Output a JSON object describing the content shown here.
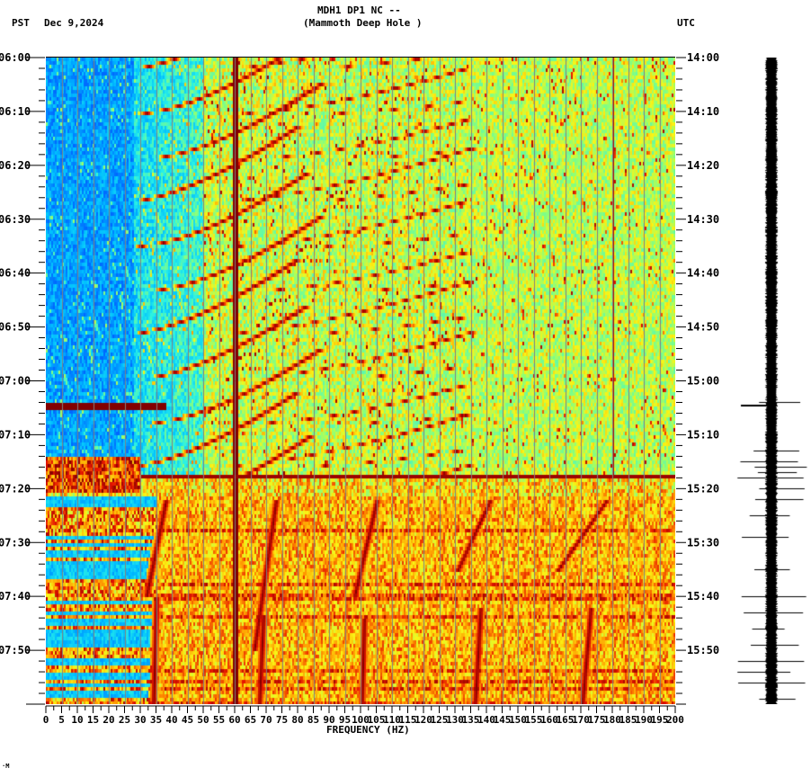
{
  "header": {
    "station": "MDH1 DP1 NC --",
    "location": "(Mammoth Deep Hole )",
    "left_zone": "PST",
    "date": "Dec 9,2024",
    "right_zone": "UTC",
    "corner_mark": "·M"
  },
  "axes": {
    "xlabel": "FREQUENCY (HZ)",
    "x_ticks": [
      "0",
      "5",
      "10",
      "15",
      "20",
      "25",
      "30",
      "35",
      "40",
      "45",
      "50",
      "55",
      "60",
      "65",
      "70",
      "75",
      "80",
      "85",
      "90",
      "95",
      "100",
      "105",
      "110",
      "115",
      "120",
      "125",
      "130",
      "135",
      "140",
      "145",
      "150",
      "155",
      "160",
      "165",
      "170",
      "175",
      "180",
      "185",
      "190",
      "195",
      "200"
    ],
    "left_ticks": [
      "06:00",
      "06:10",
      "06:20",
      "06:30",
      "06:40",
      "06:50",
      "07:00",
      "07:10",
      "07:20",
      "07:30",
      "07:40",
      "07:50"
    ],
    "right_ticks": [
      "14:00",
      "14:10",
      "14:20",
      "14:30",
      "14:40",
      "14:50",
      "15:00",
      "15:10",
      "15:20",
      "15:30",
      "15:40",
      "15:50"
    ]
  },
  "colors": {
    "low": "#1e6eff",
    "low_mid": "#38c8f0",
    "mid": "#7dffa0",
    "mid_high": "#f5f020",
    "high": "#ff8c00",
    "peak": "#8b0000",
    "grid": "#808080",
    "trace": "#000000"
  },
  "chart_data": {
    "type": "heatmap",
    "title": "MDH1 DP1 NC -- (Mammoth Deep Hole ) Dec 9,2024",
    "xlabel": "FREQUENCY (HZ)",
    "ylabel_left": "PST",
    "ylabel_right": "UTC",
    "xlim": [
      0,
      200
    ],
    "x_tick_step": 5,
    "ylim_pst": [
      "06:00",
      "08:00"
    ],
    "ylim_utc": [
      "14:00",
      "16:00"
    ],
    "y_tick_step_minutes": 10,
    "grid": "vertical lines every 5 Hz",
    "features": [
      {
        "type": "persistent_line",
        "frequency_hz": 60,
        "time_range": "06:00-08:00",
        "intensity": "peak"
      },
      {
        "type": "persistent_line",
        "frequency_hz": 180,
        "time_range": "06:00-07:17",
        "intensity": "high"
      },
      {
        "type": "broadband_event",
        "time_pst": "07:04",
        "freq_range_hz": [
          0,
          40
        ],
        "intensity": "peak"
      },
      {
        "type": "broadband_event",
        "time_pst": "07:17",
        "freq_range_hz": [
          0,
          200
        ],
        "intensity": "peak"
      },
      {
        "type": "gliding_harmonics",
        "time_range": "06:00-07:17",
        "freq_range_hz": [
          20,
          130
        ],
        "description": "repeated upward-curving chirps, ~8 min period"
      },
      {
        "type": "gliding_harmonics",
        "time_range": "07:20-08:00",
        "freq_range_hz": [
          30,
          200
        ],
        "description": "steep chirps near 40, 75, 105, 140, 175 Hz"
      }
    ],
    "background": {
      "06:00-07:17": {
        "0-30Hz": "low (blue)",
        "30-130Hz": "mid (cyan-yellow)",
        "130-200Hz": "mid (green-yellow)"
      },
      "07:20-08:00": {
        "0-35Hz": "banded low/high",
        "35-200Hz": "high (yellow-orange)"
      }
    },
    "seismogram": {
      "position": "right",
      "spikes_utc": [
        "15:04",
        "15:13",
        "15:15",
        "15:16",
        "15:17",
        "15:18",
        "15:20",
        "15:22",
        "15:25",
        "15:29",
        "15:35",
        "15:40",
        "15:43",
        "15:46",
        "15:49",
        "15:52",
        "15:54",
        "15:56",
        "15:59"
      ]
    }
  }
}
